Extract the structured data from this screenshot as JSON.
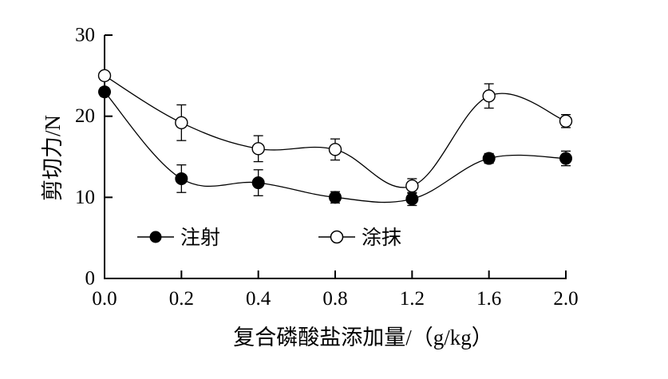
{
  "chart_data": {
    "type": "line",
    "title": "",
    "xlabel": "复合磷酸盐添加量/（g/kg）",
    "ylabel": "剪切力/N",
    "categories": [
      "0.0",
      "0.2",
      "0.4",
      "0.8",
      "1.2",
      "1.6",
      "2.0"
    ],
    "ylim": [
      0,
      30
    ],
    "yticks": [
      "0",
      "10",
      "20",
      "30"
    ],
    "grid": false,
    "legend_position": "inside-bottom-left",
    "series": [
      {
        "name": "注射",
        "marker": "filled-circle",
        "color": "#000000",
        "values": [
          23.0,
          12.3,
          11.8,
          10.0,
          9.8,
          14.8,
          14.8
        ],
        "error": [
          0.5,
          1.7,
          1.6,
          0.7,
          0.8,
          0.6,
          0.9
        ]
      },
      {
        "name": "涂抹",
        "marker": "open-circle",
        "color": "#000000",
        "values": [
          25.0,
          19.2,
          16.0,
          15.9,
          11.4,
          22.5,
          19.4
        ],
        "error": [
          0.5,
          2.2,
          1.6,
          1.3,
          0.9,
          1.5,
          0.8
        ]
      }
    ]
  }
}
